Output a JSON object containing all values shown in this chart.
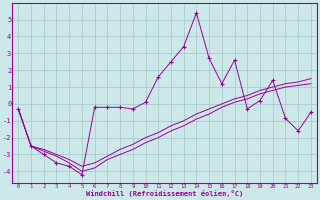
{
  "xlabel": "Windchill (Refroidissement éolien,°C)",
  "bg_color": "#cce8e8",
  "line_color": "#990099",
  "grid_color": "#aacccc",
  "xlim": [
    -0.5,
    23.5
  ],
  "ylim": [
    -4.7,
    6.0
  ],
  "xticks": [
    0,
    1,
    2,
    3,
    4,
    5,
    6,
    7,
    8,
    9,
    10,
    11,
    12,
    13,
    14,
    15,
    16,
    17,
    18,
    19,
    20,
    21,
    22,
    23
  ],
  "yticks": [
    -4,
    -3,
    -2,
    -1,
    0,
    1,
    2,
    3,
    4,
    5
  ],
  "series1_x": [
    0,
    1,
    2,
    3,
    4,
    5,
    6,
    7,
    8,
    9,
    10,
    11,
    12,
    13,
    14,
    15,
    16,
    17,
    18,
    19,
    20,
    21,
    22,
    23
  ],
  "series1_y": [
    -0.3,
    -2.5,
    -3.0,
    -3.5,
    -3.7,
    -4.2,
    -0.2,
    -0.2,
    -0.2,
    -0.3,
    0.1,
    1.6,
    2.5,
    3.4,
    5.4,
    2.7,
    1.2,
    2.6,
    -0.3,
    0.2,
    1.4,
    -0.85,
    -1.6,
    -0.5
  ],
  "series2_x": [
    0,
    1,
    2,
    3,
    4,
    5,
    6,
    7,
    8,
    9,
    10,
    11,
    12,
    13,
    14,
    15,
    16,
    17,
    18,
    19,
    20,
    21,
    22,
    23
  ],
  "series2_y": [
    -0.3,
    -2.5,
    -2.7,
    -3.0,
    -3.3,
    -3.7,
    -3.5,
    -3.1,
    -2.7,
    -2.4,
    -2.0,
    -1.7,
    -1.3,
    -1.0,
    -0.6,
    -0.3,
    0.0,
    0.3,
    0.5,
    0.8,
    1.0,
    1.2,
    1.3,
    1.5
  ],
  "series3_x": [
    0,
    1,
    2,
    3,
    4,
    5,
    6,
    7,
    8,
    9,
    10,
    11,
    12,
    13,
    14,
    15,
    16,
    17,
    18,
    19,
    20,
    21,
    22,
    23
  ],
  "series3_y": [
    -0.3,
    -2.5,
    -2.8,
    -3.1,
    -3.5,
    -4.0,
    -3.8,
    -3.3,
    -3.0,
    -2.7,
    -2.3,
    -2.0,
    -1.6,
    -1.3,
    -0.9,
    -0.6,
    -0.2,
    0.1,
    0.3,
    0.6,
    0.8,
    1.0,
    1.1,
    1.2
  ]
}
